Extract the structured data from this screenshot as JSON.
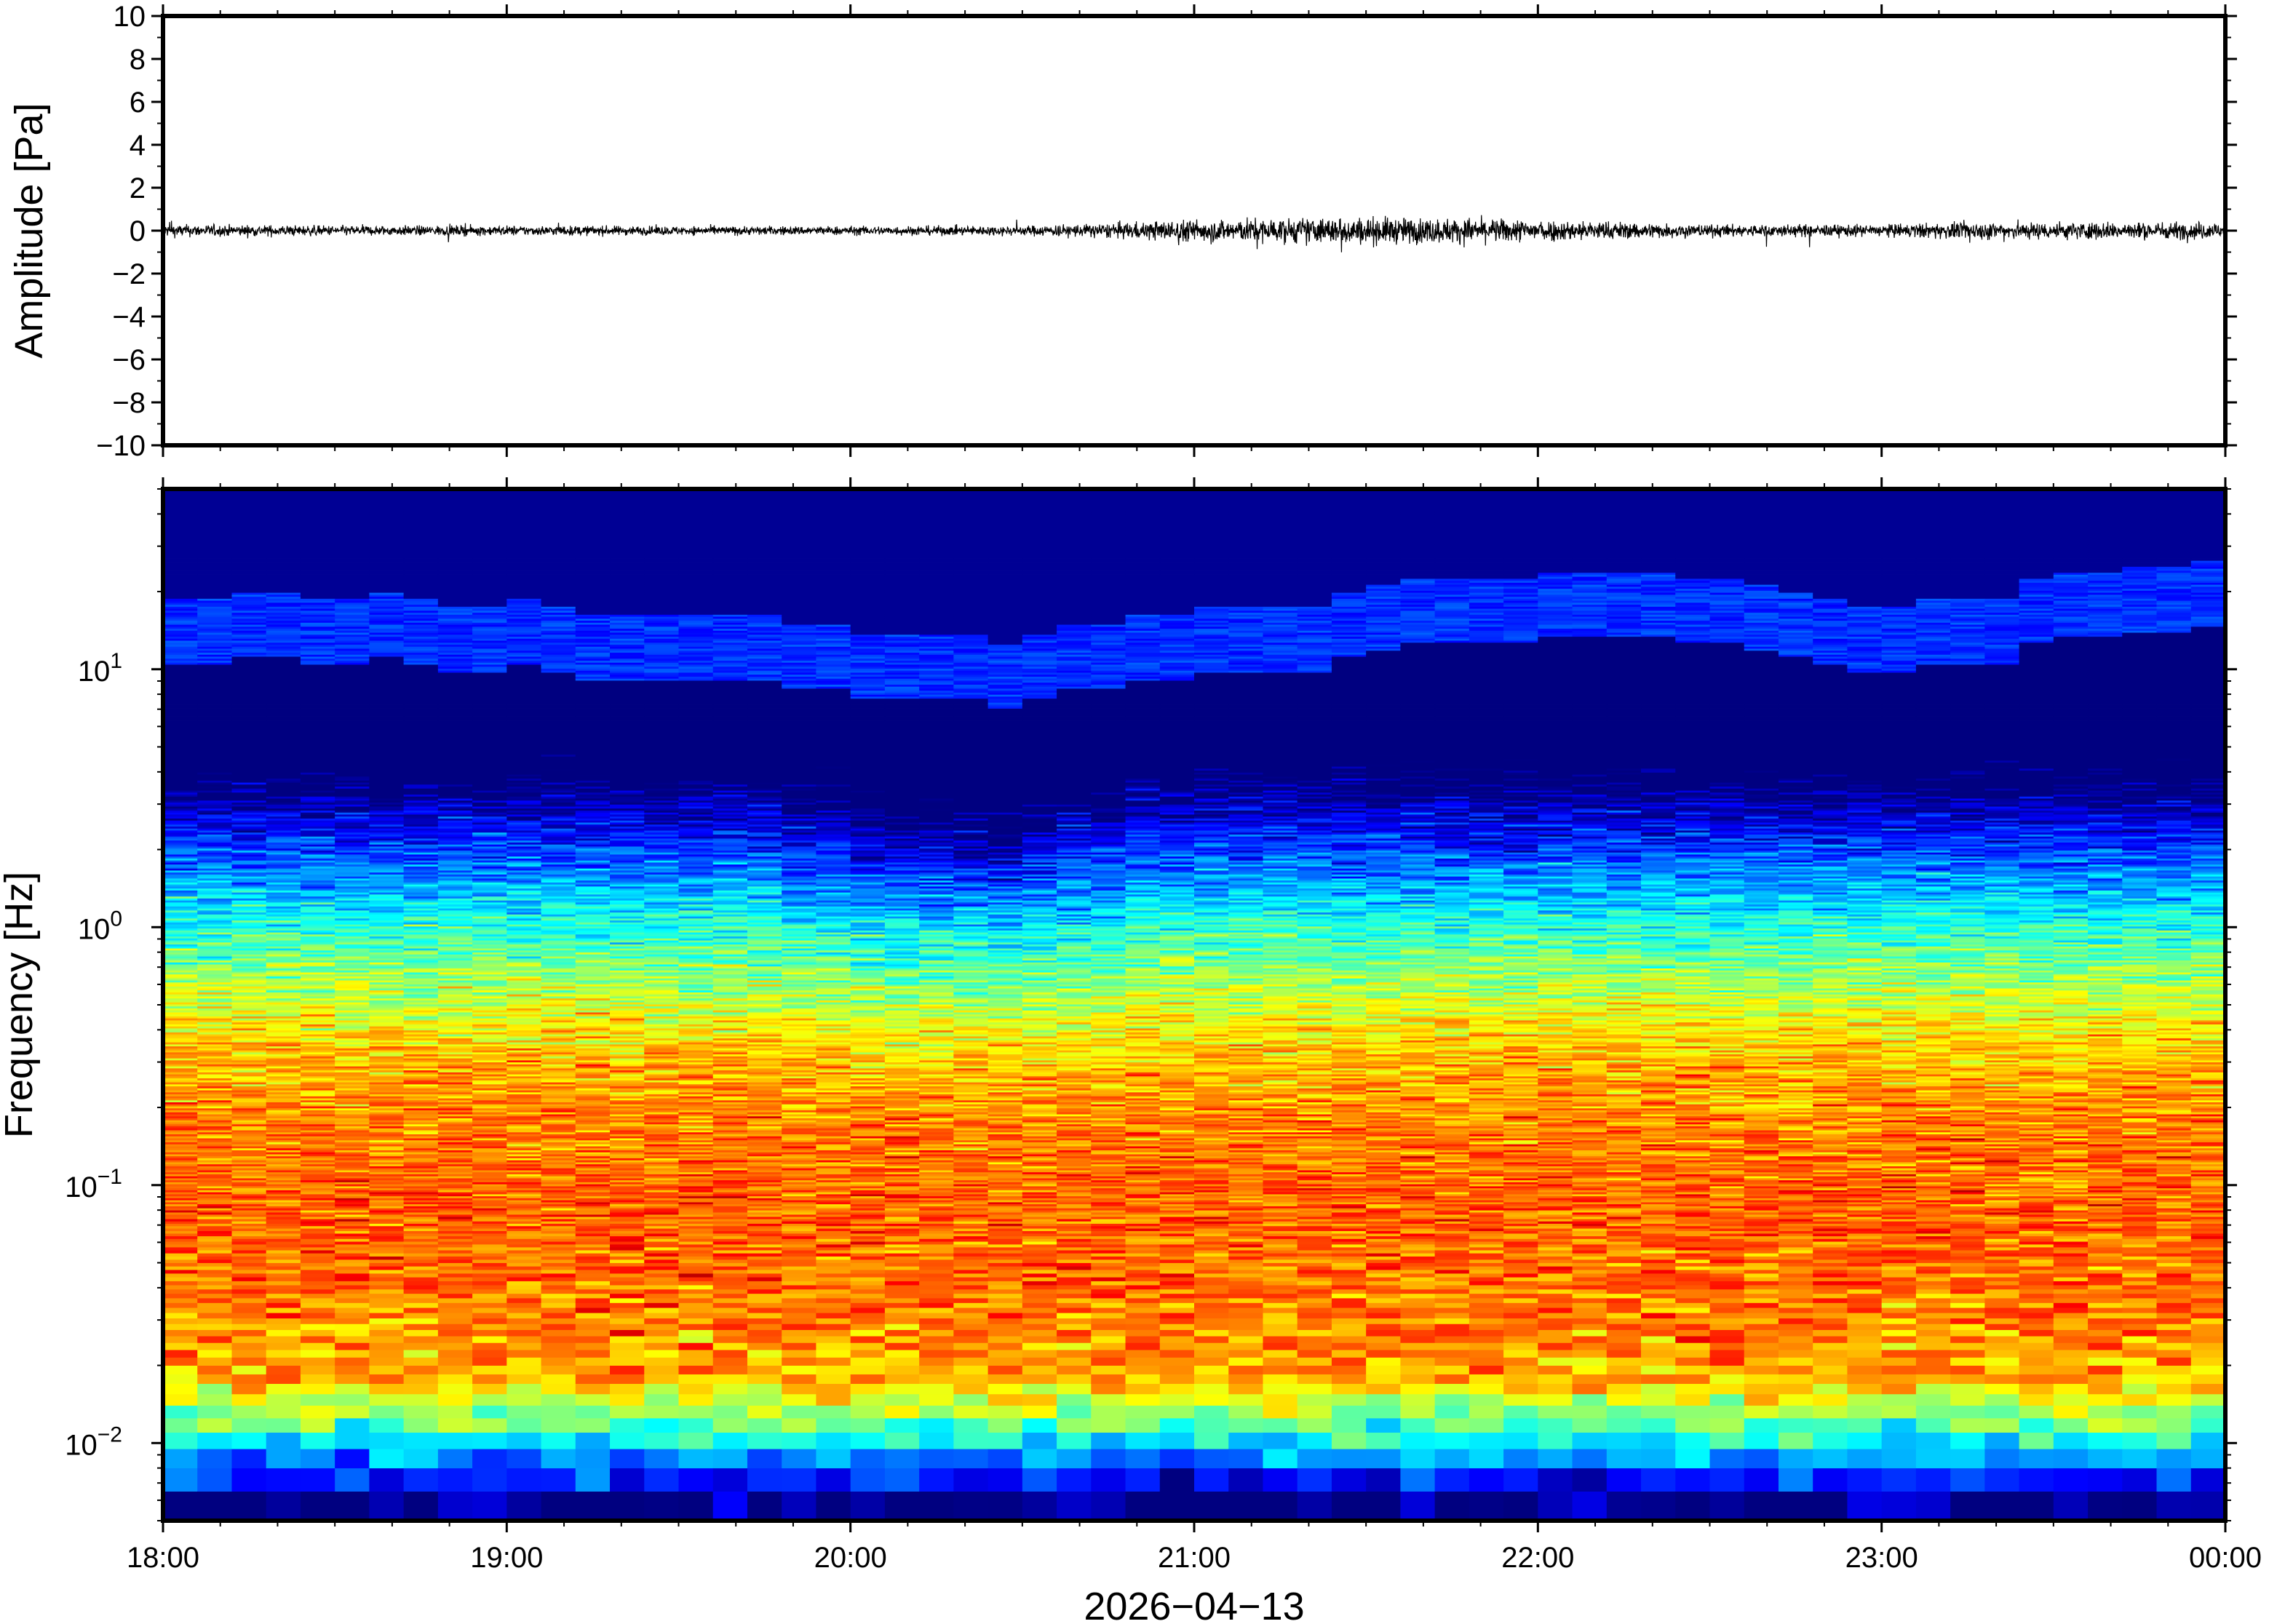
{
  "chart_data": [
    {
      "type": "line",
      "title": "",
      "ylabel": "Amplitude [Pa]",
      "ylim": [
        -10,
        10
      ],
      "yticks": [
        -10,
        -8,
        -6,
        -4,
        -2,
        0,
        2,
        4,
        6,
        8,
        10
      ],
      "ytick_labels": [
        "−10",
        "−8",
        "−6",
        "−4",
        "−2",
        "0",
        "2",
        "4",
        "6",
        "8",
        "10"
      ],
      "xlim": [
        "18:00",
        "24:00"
      ],
      "series": [
        {
          "x": [
            "18:00",
            "18:30",
            "19:00",
            "19:30",
            "20:00",
            "20:30",
            "20:45",
            "21:00",
            "21:15",
            "21:30",
            "21:45",
            "22:00",
            "22:15",
            "22:30",
            "23:00",
            "23:15",
            "23:30",
            "24:00"
          ],
          "envelope": [
            0.25,
            0.2,
            0.2,
            0.18,
            0.18,
            0.2,
            0.3,
            0.45,
            0.5,
            0.55,
            0.5,
            0.45,
            0.35,
            0.25,
            0.25,
            0.35,
            0.35,
            0.35
          ]
        }
      ],
      "line_color": "#000000"
    },
    {
      "type": "heatmap",
      "title": "",
      "ylabel": "Frequency [Hz]",
      "xlabel": "2026−04−13",
      "yscale": "log",
      "ylim": [
        0.005,
        50
      ],
      "yticks": [
        0.01,
        0.1,
        1,
        10
      ],
      "ytick_labels": [
        {
          "base": "10",
          "exp": "−2"
        },
        {
          "base": "10",
          "exp": "−1"
        },
        {
          "base": "10",
          "exp": "0"
        },
        {
          "base": "10",
          "exp": "1"
        }
      ],
      "xticks": [
        "18:00",
        "19:00",
        "20:00",
        "21:00",
        "22:00",
        "23:00",
        "00:00"
      ],
      "colormap": "jet",
      "time_bins": 60,
      "upper_edge_hz": [
        15,
        15,
        16,
        16,
        15,
        15,
        16,
        15,
        14,
        14,
        15,
        14,
        13,
        13,
        13,
        13,
        13,
        13,
        12,
        12,
        11,
        11,
        11,
        11,
        10,
        11,
        12,
        12,
        13,
        13,
        14,
        14,
        14,
        14,
        16,
        17,
        18,
        18,
        18,
        18,
        19,
        19,
        19,
        19,
        18,
        18,
        17,
        16,
        15,
        14,
        14,
        15,
        15,
        15,
        18,
        19,
        19,
        20,
        20,
        21
      ],
      "low_band_color": "#2aa7ff",
      "high_band_color": "#000d7a"
    }
  ]
}
